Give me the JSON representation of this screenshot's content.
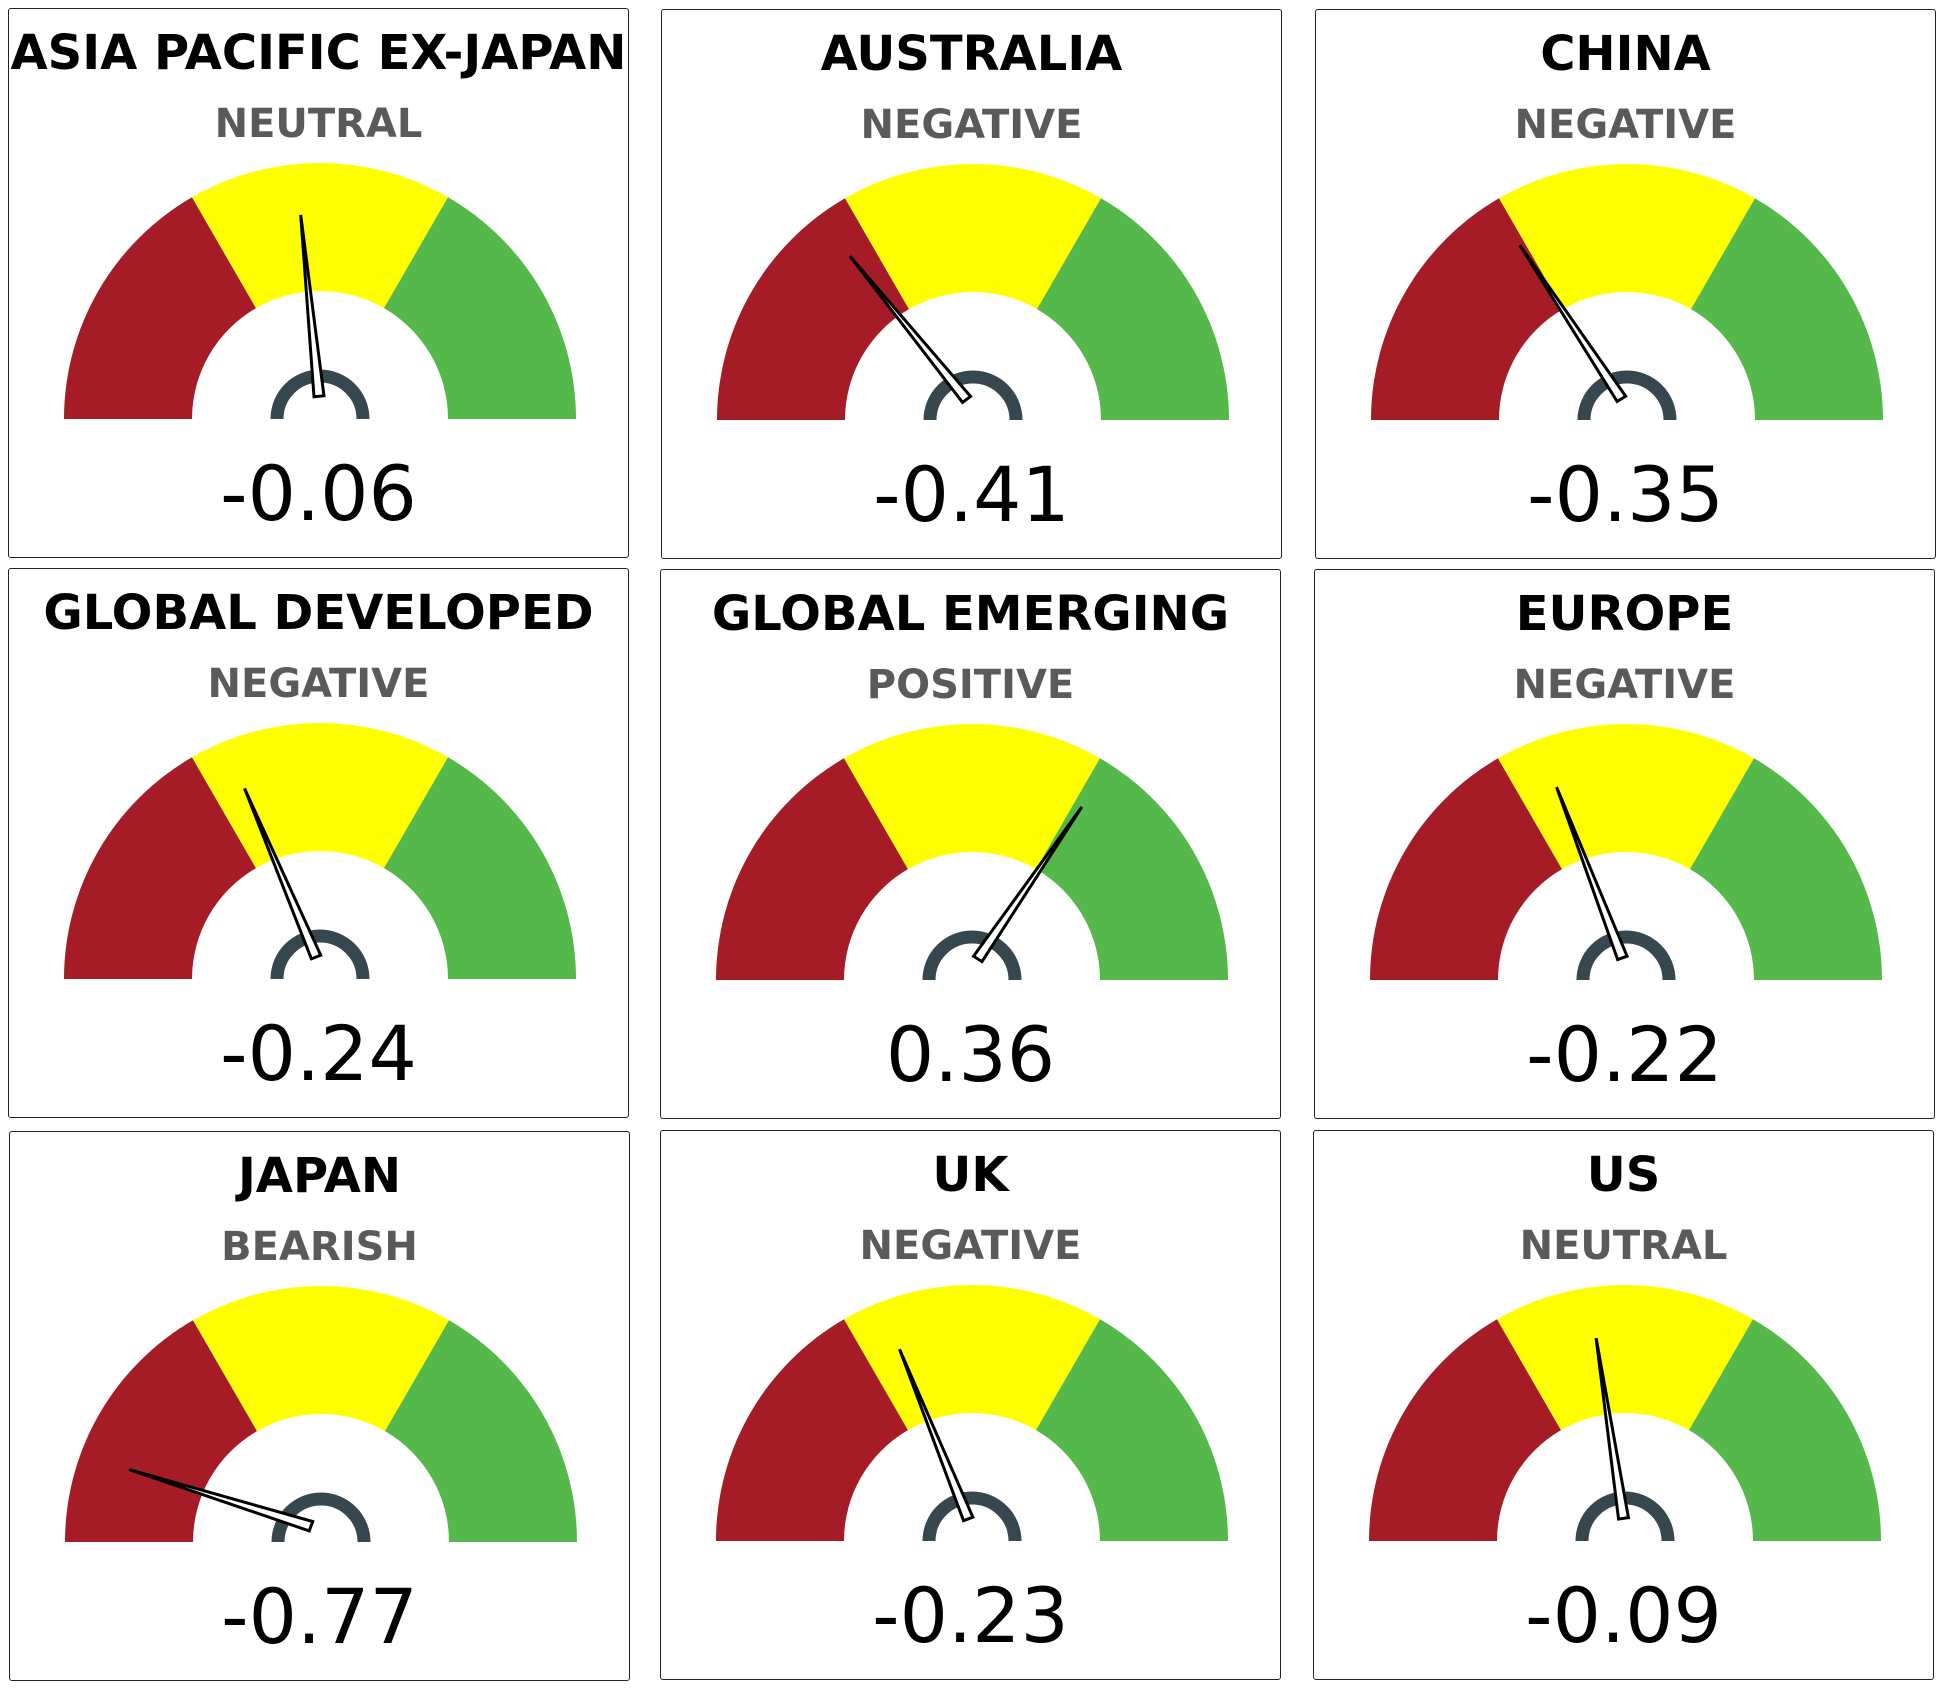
{
  "chart_data": [
    {
      "type": "gauge",
      "title": "ASIA PACIFIC EX-JAPAN",
      "status": "NEUTRAL",
      "value": -0.06,
      "value_label": "-0.06",
      "range": [
        -1,
        1
      ]
    },
    {
      "type": "gauge",
      "title": "AUSTRALIA",
      "status": "NEGATIVE",
      "value": -0.41,
      "value_label": "-0.41",
      "range": [
        -1,
        1
      ]
    },
    {
      "type": "gauge",
      "title": "CHINA",
      "status": "NEGATIVE",
      "value": -0.35,
      "value_label": "-0.35",
      "range": [
        -1,
        1
      ]
    },
    {
      "type": "gauge",
      "title": "GLOBAL DEVELOPED",
      "status": "NEGATIVE",
      "value": -0.24,
      "value_label": "-0.24",
      "range": [
        -1,
        1
      ]
    },
    {
      "type": "gauge",
      "title": "GLOBAL EMERGING",
      "status": "POSITIVE",
      "value": 0.36,
      "value_label": "0.36",
      "range": [
        -1,
        1
      ]
    },
    {
      "type": "gauge",
      "title": "EUROPE",
      "status": "NEGATIVE",
      "value": -0.22,
      "value_label": "-0.22",
      "range": [
        -1,
        1
      ]
    },
    {
      "type": "gauge",
      "title": "JAPAN",
      "status": "BEARISH",
      "value": -0.77,
      "value_label": "-0.77",
      "range": [
        -1,
        1
      ]
    },
    {
      "type": "gauge",
      "title": "UK",
      "status": "NEGATIVE",
      "value": -0.23,
      "value_label": "-0.23",
      "range": [
        -1,
        1
      ]
    },
    {
      "type": "gauge",
      "title": "US",
      "status": "NEUTRAL",
      "value": -0.09,
      "value_label": "-0.09",
      "range": [
        -1,
        1
      ]
    }
  ],
  "bands": [
    {
      "name": "negative",
      "from": -1,
      "to": -0.3333,
      "color": "#a51c27"
    },
    {
      "name": "neutral",
      "from": -0.3333,
      "to": 0.3333,
      "color": "#ffff00"
    },
    {
      "name": "positive",
      "from": 0.3333,
      "to": 1,
      "color": "#55b84a"
    }
  ],
  "hub_color": "#37474f",
  "needle_color": "#000000"
}
